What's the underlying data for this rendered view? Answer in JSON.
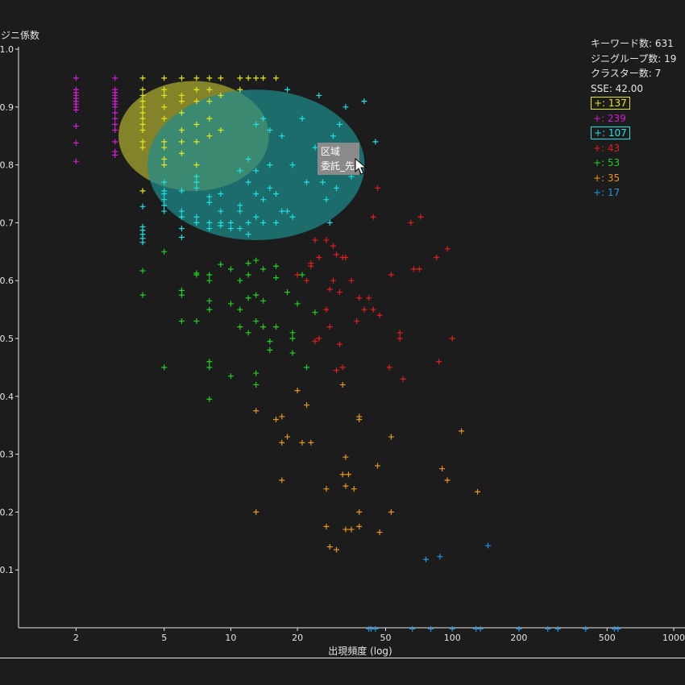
{
  "chart_data": {
    "type": "scatter",
    "title": "",
    "xlabel": "出現頻度 (log)",
    "ylabel": "ジニ係数",
    "xscale": "log",
    "xlim": [
      1.1,
      1000
    ],
    "ylim": [
      0,
      1.0
    ],
    "x_ticks": [
      "2",
      "5",
      "10",
      "20",
      "50",
      "100",
      "200",
      "500",
      "1000"
    ],
    "x_tick_values": [
      2,
      5,
      10,
      20,
      50,
      100,
      200,
      500,
      1000
    ],
    "y_ticks": [
      "0.1",
      "0.2",
      "0.3",
      "0.4",
      "0.5",
      "0.6",
      "0.7",
      "0.8",
      "0.9",
      "1.0"
    ],
    "y_tick_values": [
      0.1,
      0.2,
      0.3,
      0.4,
      0.5,
      0.6,
      0.7,
      0.8,
      0.9,
      1.0
    ],
    "marker": "+",
    "grid": false,
    "series": [
      {
        "color": "#e6e61e",
        "count": "137",
        "points": [
          [
            4,
            0.95
          ],
          [
            4,
            0.93
          ],
          [
            4,
            0.92
          ],
          [
            4,
            0.91
          ],
          [
            4,
            0.9
          ],
          [
            4,
            0.89
          ],
          [
            4,
            0.88
          ],
          [
            4,
            0.87
          ],
          [
            4,
            0.86
          ],
          [
            4,
            0.84
          ],
          [
            4,
            0.83
          ],
          [
            4,
            0.755
          ],
          [
            5,
            0.95
          ],
          [
            5,
            0.93
          ],
          [
            5,
            0.92
          ],
          [
            5,
            0.9
          ],
          [
            5,
            0.88
          ],
          [
            5,
            0.84
          ],
          [
            5,
            0.83
          ],
          [
            5,
            0.81
          ],
          [
            5,
            0.8
          ],
          [
            6,
            0.95
          ],
          [
            6,
            0.92
          ],
          [
            6,
            0.91
          ],
          [
            6,
            0.89
          ],
          [
            6,
            0.86
          ],
          [
            6,
            0.84
          ],
          [
            6,
            0.82
          ],
          [
            7,
            0.95
          ],
          [
            7,
            0.93
          ],
          [
            7,
            0.91
          ],
          [
            7,
            0.87
          ],
          [
            7,
            0.84
          ],
          [
            7,
            0.8
          ],
          [
            8,
            0.95
          ],
          [
            8,
            0.93
          ],
          [
            8,
            0.91
          ],
          [
            8,
            0.88
          ],
          [
            8,
            0.85
          ],
          [
            9,
            0.95
          ],
          [
            9,
            0.92
          ],
          [
            9,
            0.86
          ],
          [
            11,
            0.95
          ],
          [
            11,
            0.93
          ],
          [
            12,
            0.95
          ],
          [
            13,
            0.95
          ],
          [
            14,
            0.95
          ],
          [
            16,
            0.95
          ]
        ]
      },
      {
        "color": "#d21ed2",
        "count": "239",
        "points": [
          [
            2,
            0.95
          ],
          [
            2,
            0.93
          ],
          [
            2,
            0.925
          ],
          [
            2,
            0.92
          ],
          [
            2,
            0.915
          ],
          [
            2,
            0.91
          ],
          [
            2,
            0.905
          ],
          [
            2,
            0.9
          ],
          [
            2,
            0.895
          ],
          [
            2,
            0.867
          ],
          [
            2,
            0.838
          ],
          [
            2,
            0.806
          ],
          [
            3,
            0.95
          ],
          [
            3,
            0.93
          ],
          [
            3,
            0.925
          ],
          [
            3,
            0.92
          ],
          [
            3,
            0.915
          ],
          [
            3,
            0.91
          ],
          [
            3,
            0.905
          ],
          [
            3,
            0.9
          ],
          [
            3,
            0.89
          ],
          [
            3,
            0.88
          ],
          [
            3,
            0.87
          ],
          [
            3,
            0.86
          ],
          [
            3,
            0.84
          ],
          [
            3,
            0.823
          ],
          [
            3,
            0.817
          ]
        ]
      },
      {
        "color": "#1ee1e1",
        "count": "107",
        "points": [
          [
            4,
            0.728
          ],
          [
            4,
            0.693
          ],
          [
            4,
            0.687
          ],
          [
            4,
            0.68
          ],
          [
            4,
            0.673
          ],
          [
            4,
            0.666
          ],
          [
            5,
            0.77
          ],
          [
            5,
            0.755
          ],
          [
            5,
            0.75
          ],
          [
            5,
            0.74
          ],
          [
            5,
            0.73
          ],
          [
            5,
            0.72
          ],
          [
            6,
            0.755
          ],
          [
            6,
            0.72
          ],
          [
            6,
            0.71
          ],
          [
            6,
            0.69
          ],
          [
            6,
            0.675
          ],
          [
            7,
            0.78
          ],
          [
            7,
            0.77
          ],
          [
            7,
            0.76
          ],
          [
            7,
            0.71
          ],
          [
            7,
            0.7
          ],
          [
            8,
            0.745
          ],
          [
            8,
            0.735
          ],
          [
            8,
            0.7
          ],
          [
            8,
            0.69
          ],
          [
            9,
            0.75
          ],
          [
            9,
            0.72
          ],
          [
            9,
            0.7
          ],
          [
            9,
            0.695
          ],
          [
            10,
            0.7
          ],
          [
            10,
            0.69
          ],
          [
            11,
            0.79
          ],
          [
            11,
            0.73
          ],
          [
            11,
            0.72
          ],
          [
            11,
            0.69
          ],
          [
            12,
            0.81
          ],
          [
            12,
            0.77
          ],
          [
            12,
            0.7
          ],
          [
            12,
            0.68
          ],
          [
            13,
            0.87
          ],
          [
            13,
            0.79
          ],
          [
            13,
            0.75
          ],
          [
            13,
            0.71
          ],
          [
            14,
            0.88
          ],
          [
            14,
            0.74
          ],
          [
            14,
            0.7
          ],
          [
            15,
            0.86
          ],
          [
            15,
            0.8
          ],
          [
            15,
            0.76
          ],
          [
            16,
            0.75
          ],
          [
            16,
            0.7
          ],
          [
            17,
            0.85
          ],
          [
            17,
            0.72
          ],
          [
            18,
            0.93
          ],
          [
            18,
            0.72
          ],
          [
            19,
            0.8
          ],
          [
            19,
            0.71
          ],
          [
            21,
            0.88
          ],
          [
            22,
            0.77
          ],
          [
            24,
            0.83
          ],
          [
            25,
            0.92
          ],
          [
            26,
            0.8
          ],
          [
            26,
            0.77
          ],
          [
            27,
            0.74
          ],
          [
            28,
            0.7
          ],
          [
            29,
            0.85
          ],
          [
            30,
            0.76
          ],
          [
            31,
            0.87
          ],
          [
            33,
            0.9
          ],
          [
            35,
            0.78
          ],
          [
            40,
            0.91
          ],
          [
            45,
            0.84
          ]
        ]
      },
      {
        "color": "#e11e1e",
        "count": "43",
        "points": [
          [
            20,
            0.61
          ],
          [
            22,
            0.6
          ],
          [
            23,
            0.63
          ],
          [
            23,
            0.625
          ],
          [
            24,
            0.67
          ],
          [
            24,
            0.495
          ],
          [
            25,
            0.64
          ],
          [
            25,
            0.5
          ],
          [
            27,
            0.67
          ],
          [
            27,
            0.55
          ],
          [
            28,
            0.585
          ],
          [
            28,
            0.52
          ],
          [
            29,
            0.66
          ],
          [
            29,
            0.6
          ],
          [
            30,
            0.645
          ],
          [
            30,
            0.445
          ],
          [
            31,
            0.58
          ],
          [
            31,
            0.49
          ],
          [
            32,
            0.64
          ],
          [
            32,
            0.45
          ],
          [
            33,
            0.64
          ],
          [
            35,
            0.6
          ],
          [
            37,
            0.53
          ],
          [
            38,
            0.57
          ],
          [
            40,
            0.55
          ],
          [
            42,
            0.57
          ],
          [
            44,
            0.71
          ],
          [
            44,
            0.55
          ],
          [
            46,
            0.76
          ],
          [
            47,
            0.54
          ],
          [
            52,
            0.45
          ],
          [
            53,
            0.61
          ],
          [
            58,
            0.51
          ],
          [
            58,
            0.5
          ],
          [
            60,
            0.43
          ],
          [
            65,
            0.7
          ],
          [
            67,
            0.62
          ],
          [
            71,
            0.62
          ],
          [
            72,
            0.71
          ],
          [
            85,
            0.64
          ],
          [
            87,
            0.46
          ],
          [
            95,
            0.655
          ],
          [
            100,
            0.5
          ]
        ]
      },
      {
        "color": "#1ed21e",
        "count": "53",
        "points": [
          [
            4,
            0.617
          ],
          [
            4,
            0.575
          ],
          [
            5,
            0.65
          ],
          [
            5,
            0.45
          ],
          [
            6,
            0.583
          ],
          [
            6,
            0.575
          ],
          [
            6,
            0.53
          ],
          [
            7,
            0.613
          ],
          [
            7,
            0.61
          ],
          [
            7,
            0.53
          ],
          [
            8,
            0.61
          ],
          [
            8,
            0.6
          ],
          [
            8,
            0.565
          ],
          [
            8,
            0.55
          ],
          [
            8,
            0.46
          ],
          [
            8,
            0.45
          ],
          [
            8,
            0.395
          ],
          [
            9,
            0.628
          ],
          [
            10,
            0.62
          ],
          [
            10,
            0.56
          ],
          [
            10,
            0.435
          ],
          [
            11,
            0.6
          ],
          [
            11,
            0.55
          ],
          [
            11,
            0.52
          ],
          [
            12,
            0.63
          ],
          [
            12,
            0.61
          ],
          [
            12,
            0.57
          ],
          [
            12,
            0.51
          ],
          [
            13,
            0.635
          ],
          [
            13,
            0.575
          ],
          [
            13,
            0.53
          ],
          [
            13,
            0.44
          ],
          [
            13,
            0.42
          ],
          [
            14,
            0.62
          ],
          [
            14,
            0.565
          ],
          [
            14,
            0.52
          ],
          [
            15,
            0.495
          ],
          [
            15,
            0.48
          ],
          [
            16,
            0.625
          ],
          [
            16,
            0.605
          ],
          [
            16,
            0.52
          ],
          [
            18,
            0.58
          ],
          [
            19,
            0.51
          ],
          [
            19,
            0.5
          ],
          [
            19,
            0.475
          ],
          [
            20,
            0.56
          ],
          [
            21,
            0.61
          ],
          [
            22,
            0.45
          ],
          [
            24,
            0.545
          ]
        ]
      },
      {
        "color": "#e6961e",
        "count": "35",
        "points": [
          [
            13,
            0.2
          ],
          [
            13,
            0.375
          ],
          [
            16,
            0.36
          ],
          [
            17,
            0.365
          ],
          [
            17,
            0.32
          ],
          [
            17,
            0.255
          ],
          [
            18,
            0.33
          ],
          [
            20,
            0.41
          ],
          [
            21,
            0.32
          ],
          [
            22,
            0.385
          ],
          [
            23,
            0.32
          ],
          [
            27,
            0.24
          ],
          [
            27,
            0.175
          ],
          [
            28,
            0.14
          ],
          [
            30,
            0.135
          ],
          [
            32,
            0.42
          ],
          [
            32,
            0.265
          ],
          [
            33,
            0.295
          ],
          [
            33,
            0.245
          ],
          [
            33,
            0.17
          ],
          [
            34,
            0.265
          ],
          [
            35,
            0.17
          ],
          [
            36,
            0.24
          ],
          [
            38,
            0.365
          ],
          [
            38,
            0.36
          ],
          [
            38,
            0.2
          ],
          [
            38,
            0.175
          ],
          [
            46,
            0.28
          ],
          [
            47,
            0.165
          ],
          [
            53,
            0.33
          ],
          [
            53,
            0.2
          ],
          [
            90,
            0.275
          ],
          [
            95,
            0.255
          ],
          [
            110,
            0.34
          ],
          [
            130,
            0.235
          ]
        ]
      },
      {
        "color": "#1e96e1",
        "count": "17",
        "points": [
          [
            76,
            0.118
          ],
          [
            88,
            0.123
          ],
          [
            145,
            0.142
          ],
          [
            42,
            -0.002
          ],
          [
            43,
            -0.002
          ],
          [
            45,
            -0.002
          ],
          [
            66,
            -0.002
          ],
          [
            80,
            -0.002
          ],
          [
            100,
            -0.002
          ],
          [
            128,
            -0.002
          ],
          [
            134,
            -0.002
          ],
          [
            200,
            -0.002
          ],
          [
            270,
            -0.002
          ],
          [
            300,
            -0.002
          ],
          [
            400,
            -0.002
          ],
          [
            540,
            -0.002
          ],
          [
            560,
            -0.002
          ]
        ]
      }
    ],
    "highlight_ellipses": [
      {
        "color": "#c8c832",
        "opacity": 0.6,
        "cx": 6.8,
        "cy": 0.85,
        "rx_decades": 0.68,
        "ry": 0.095
      },
      {
        "color": "#1e8c8c",
        "opacity": 0.72,
        "cx": 13,
        "cy": 0.8,
        "rx_decades": 0.98,
        "ry": 0.13
      }
    ]
  },
  "stats": {
    "keywords": "キーワード数: 631",
    "gini_groups": "ジニグループ数: 19",
    "clusters": "クラスター数: 7",
    "sse": "SSE: 42.00"
  },
  "legend": [
    {
      "label": "+: 137",
      "color": "#e6e61e",
      "selected": true
    },
    {
      "label": "+: 239",
      "color": "#d21ed2",
      "selected": false
    },
    {
      "label": "+: 107",
      "color": "#1ee1e1",
      "selected": true
    },
    {
      "label": "+: 43",
      "color": "#e11e1e",
      "selected": false
    },
    {
      "label": "+: 53",
      "color": "#1ed21e",
      "selected": false
    },
    {
      "label": "+: 35",
      "color": "#e6961e",
      "selected": false
    },
    {
      "label": "+: 17",
      "color": "#1e96e1",
      "selected": false
    }
  ],
  "tooltip": {
    "line1": "区域",
    "line2": "委託_先"
  },
  "colors": {
    "background": "#1c1c1c",
    "axis": "#e6e6e6"
  },
  "icons": {
    "cursor": "mouse-pointer-icon"
  }
}
